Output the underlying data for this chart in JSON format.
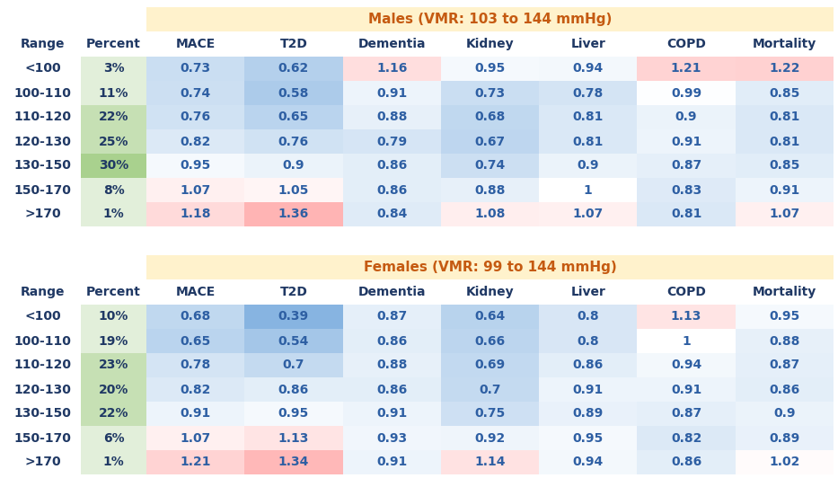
{
  "males_title": "Males (VMR: 103 to 144 mmHg)",
  "females_title": "Females (VMR: 99 to 144 mmHg)",
  "col_headers": [
    "MACE",
    "T2D",
    "Dementia",
    "Kidney",
    "Liver",
    "COPD",
    "Mortality"
  ],
  "row_labels": [
    "<100",
    "100-110",
    "110-120",
    "120-130",
    "130-150",
    "150-170",
    ">170"
  ],
  "males_percent": [
    "3%",
    "11%",
    "22%",
    "25%",
    "30%",
    "8%",
    "1%"
  ],
  "females_percent": [
    "10%",
    "19%",
    "23%",
    "20%",
    "22%",
    "6%",
    "1%"
  ],
  "males_data": [
    [
      0.73,
      0.62,
      1.16,
      0.95,
      0.94,
      1.21,
      1.22
    ],
    [
      0.74,
      0.58,
      0.91,
      0.73,
      0.78,
      0.99,
      0.85
    ],
    [
      0.76,
      0.65,
      0.88,
      0.68,
      0.81,
      0.9,
      0.81
    ],
    [
      0.82,
      0.76,
      0.79,
      0.67,
      0.81,
      0.91,
      0.81
    ],
    [
      0.95,
      0.9,
      0.86,
      0.74,
      0.9,
      0.87,
      0.85
    ],
    [
      1.07,
      1.05,
      0.86,
      0.88,
      1.0,
      0.83,
      0.91
    ],
    [
      1.18,
      1.36,
      0.84,
      1.08,
      1.07,
      0.81,
      1.07
    ]
  ],
  "females_data": [
    [
      0.68,
      0.39,
      0.87,
      0.64,
      0.8,
      1.13,
      0.95
    ],
    [
      0.65,
      0.54,
      0.86,
      0.66,
      0.8,
      1.0,
      0.88
    ],
    [
      0.78,
      0.7,
      0.88,
      0.69,
      0.86,
      0.94,
      0.87
    ],
    [
      0.82,
      0.86,
      0.86,
      0.7,
      0.91,
      0.91,
      0.86
    ],
    [
      0.91,
      0.95,
      0.91,
      0.75,
      0.89,
      0.87,
      0.9
    ],
    [
      1.07,
      1.13,
      0.93,
      0.92,
      0.95,
      0.82,
      0.89
    ],
    [
      1.21,
      1.34,
      0.91,
      1.14,
      0.94,
      0.86,
      1.02
    ]
  ],
  "title_bg": "#FFF2CC",
  "title_color": "#C55A11",
  "header_color": "#1F3864",
  "range_color": "#1F3864",
  "value_color": "#2E5FA3",
  "percent_bg_colors_males": [
    "#E2EFDA",
    "#E2EFDA",
    "#C6E0B4",
    "#C6E0B4",
    "#A9D18E",
    "#E2EFDA",
    "#E2EFDA"
  ],
  "percent_bg_colors_females": [
    "#E2EFDA",
    "#E2EFDA",
    "#C6E0B4",
    "#C6E0B4",
    "#C6E0B4",
    "#E2EFDA",
    "#E2EFDA"
  ]
}
